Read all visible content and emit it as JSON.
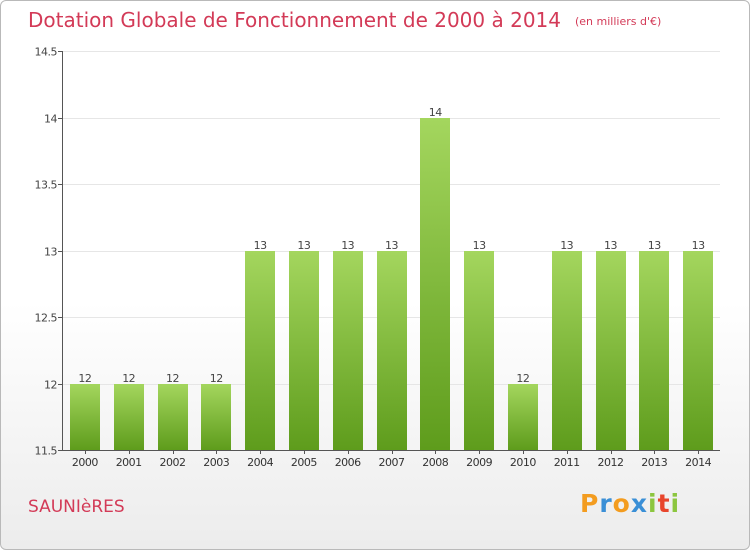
{
  "chart_data": {
    "type": "bar",
    "title": "Dotation Globale de Fonctionnement de 2000 à 2014",
    "subtitle": "(en milliers d'€)",
    "categories": [
      "2000",
      "2001",
      "2002",
      "2003",
      "2004",
      "2005",
      "2006",
      "2007",
      "2008",
      "2009",
      "2010",
      "2011",
      "2012",
      "2013",
      "2014"
    ],
    "values": [
      12,
      12,
      12,
      12,
      13,
      13,
      13,
      13,
      14,
      13,
      12,
      13,
      13,
      13,
      13
    ],
    "data_labels": [
      "12",
      "12",
      "12",
      "12",
      "13",
      "13",
      "13",
      "13",
      "14",
      "13",
      "12",
      "13",
      "13",
      "13",
      "13"
    ],
    "ylim": [
      11.5,
      14.5
    ],
    "yticks": [
      11.5,
      12,
      12.5,
      13,
      13.5,
      14,
      14.5
    ],
    "ytick_labels": [
      "11.5",
      "12",
      "12.5",
      "13",
      "13.5",
      "14",
      "14.5"
    ],
    "xlabel": "",
    "ylabel": "",
    "bar_color": "#8cc63f"
  },
  "footer": {
    "city": "SAUNIèRES",
    "logo_letters": [
      "P",
      "r",
      "o",
      "x",
      "i",
      "t",
      "i"
    ],
    "logo_colors": [
      "#f39c1f",
      "#3a8fd6",
      "#f39c1f",
      "#3a8fd6",
      "#8cc63f",
      "#e8452c",
      "#8cc63f"
    ]
  }
}
